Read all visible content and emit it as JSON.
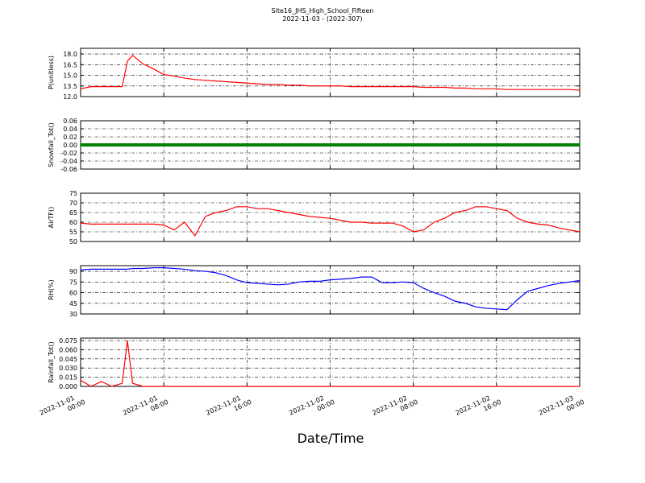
{
  "title": "Site16_JHS_High_School_Fifteen",
  "subtitle": "2022-11-03 - (2022-307)",
  "xlabel": "Date/Time",
  "x": [
    "2022-11-01 00:00",
    "2022-11-01 01:00",
    "2022-11-01 02:00",
    "2022-11-01 03:00",
    "2022-11-01 04:00",
    "2022-11-01 04:30",
    "2022-11-01 05:00",
    "2022-11-01 06:00",
    "2022-11-01 07:00",
    "2022-11-01 08:00",
    "2022-11-01 09:00",
    "2022-11-01 10:00",
    "2022-11-01 11:00",
    "2022-11-01 12:00",
    "2022-11-01 13:00",
    "2022-11-01 14:00",
    "2022-11-01 15:00",
    "2022-11-01 16:00",
    "2022-11-01 17:00",
    "2022-11-01 18:00",
    "2022-11-01 19:00",
    "2022-11-01 20:00",
    "2022-11-01 21:00",
    "2022-11-01 22:00",
    "2022-11-01 23:00",
    "2022-11-02 00:00",
    "2022-11-02 01:00",
    "2022-11-02 02:00",
    "2022-11-02 03:00",
    "2022-11-02 04:00",
    "2022-11-02 05:00",
    "2022-11-02 06:00",
    "2022-11-02 07:00",
    "2022-11-02 08:00",
    "2022-11-02 09:00",
    "2022-11-02 10:00",
    "2022-11-02 11:00",
    "2022-11-02 12:00",
    "2022-11-02 13:00",
    "2022-11-02 14:00",
    "2022-11-02 15:00",
    "2022-11-02 16:00",
    "2022-11-02 17:00",
    "2022-11-02 18:00",
    "2022-11-02 19:00",
    "2022-11-02 20:00",
    "2022-11-02 21:00",
    "2022-11-02 22:00",
    "2022-11-02 23:00",
    "2022-11-03 00:00"
  ],
  "xlim": [
    "2022-11-01 00:00",
    "2022-11-03 00:00"
  ],
  "xticks": [
    "2022-11-01 00:00",
    "2022-11-01 08:00",
    "2022-11-01 16:00",
    "2022-11-02 00:00",
    "2022-11-02 08:00",
    "2022-11-02 16:00",
    "2022-11-03 00:00"
  ],
  "chart_data": [
    {
      "type": "line",
      "ylabel": "P(unitless)",
      "ylim": [
        12,
        18.8
      ],
      "yticks": [
        {
          "value": 12,
          "label": "12.0"
        },
        13.5,
        {
          "value": 15,
          "label": "15.0"
        },
        16.5,
        {
          "value": 18,
          "label": "18.0"
        }
      ],
      "grid": true,
      "series": [
        {
          "color": "#ff0000",
          "values": [
            13.1,
            13.4,
            13.4,
            13.4,
            13.4,
            17.0,
            17.8,
            16.6,
            15.9,
            15.1,
            14.9,
            14.6,
            14.4,
            14.3,
            14.2,
            14.1,
            14.0,
            13.9,
            13.8,
            13.7,
            13.7,
            13.6,
            13.6,
            13.5,
            13.5,
            13.5,
            13.5,
            13.4,
            13.4,
            13.4,
            13.4,
            13.4,
            13.4,
            13.4,
            13.3,
            13.3,
            13.3,
            13.2,
            13.2,
            13.1,
            13.1,
            13.1,
            13.0,
            13.0,
            13.0,
            13.0,
            13.0,
            13.0,
            13.0,
            12.9
          ]
        }
      ]
    },
    {
      "type": "line",
      "ylabel": "Snowfall_Tot()",
      "ylim": [
        -0.06,
        0.06
      ],
      "yticks": [
        -0.06,
        -0.04,
        -0.02,
        {
          "value": 0,
          "label": "0.00"
        },
        0.02,
        0.04,
        0.06
      ],
      "grid": true,
      "line_width": 4,
      "series": [
        {
          "color": "#008000",
          "values": [
            0,
            0,
            0,
            0,
            0,
            0,
            0,
            0,
            0,
            0,
            0,
            0,
            0,
            0,
            0,
            0,
            0,
            0,
            0,
            0,
            0,
            0,
            0,
            0,
            0,
            0,
            0,
            0,
            0,
            0,
            0,
            0,
            0,
            0,
            0,
            0,
            0,
            0,
            0,
            0,
            0,
            0,
            0,
            0,
            0,
            0,
            0,
            0,
            0,
            0
          ]
        }
      ]
    },
    {
      "type": "line",
      "ylabel": "AirTF()",
      "ylim": [
        50,
        75
      ],
      "yticks": [
        50,
        55,
        60,
        65,
        70,
        75
      ],
      "grid": true,
      "series": [
        {
          "color": "#ff0000",
          "values": [
            59.5,
            59,
            59,
            59,
            59,
            59,
            59,
            59,
            59,
            58.5,
            56,
            60,
            53,
            63,
            65,
            66,
            68,
            68,
            67,
            67,
            66,
            65,
            64,
            63,
            62.5,
            62,
            61,
            60,
            60,
            59.5,
            59.5,
            59.5,
            58,
            55,
            56,
            60,
            62,
            65,
            66,
            68,
            68,
            67,
            66,
            62,
            60,
            59,
            58.5,
            57,
            56,
            55
          ]
        }
      ]
    },
    {
      "type": "line",
      "ylabel": "RH(%)",
      "ylim": [
        30,
        98
      ],
      "yticks": [
        30,
        45,
        60,
        75,
        90
      ],
      "grid": true,
      "series": [
        {
          "color": "#0000ff",
          "values": [
            92,
            93,
            93,
            93,
            93,
            93,
            94,
            94,
            95,
            95,
            94,
            93,
            91,
            90,
            88,
            84,
            78,
            74,
            73,
            72,
            71,
            72,
            75,
            76,
            76,
            78,
            79,
            80,
            82,
            82,
            74,
            74,
            75,
            74,
            66,
            60,
            55,
            48,
            45,
            40,
            38,
            37,
            36,
            50,
            62,
            66,
            70,
            73,
            75,
            77
          ]
        }
      ]
    },
    {
      "type": "line",
      "ylabel": "Rainfall_Tot()",
      "ylim": [
        0,
        0.079
      ],
      "yticks": [
        {
          "value": 0,
          "label": "0.000"
        },
        0.015,
        {
          "value": 0.03,
          "label": "0.030"
        },
        0.045,
        {
          "value": 0.06,
          "label": "0.060"
        },
        0.075
      ],
      "grid": true,
      "series": [
        {
          "color": "#ff0000",
          "values": [
            0.01,
            0,
            0.008,
            0,
            0.005,
            0.075,
            0.005,
            0,
            0,
            0,
            0,
            0,
            0,
            0,
            0,
            0,
            0,
            0,
            0,
            0,
            0,
            0,
            0,
            0,
            0,
            0,
            0,
            0,
            0,
            0,
            0,
            0,
            0,
            0,
            0,
            0,
            0,
            0,
            0,
            0,
            0,
            0,
            0,
            0,
            0,
            0,
            0,
            0,
            0,
            0
          ]
        }
      ]
    }
  ]
}
